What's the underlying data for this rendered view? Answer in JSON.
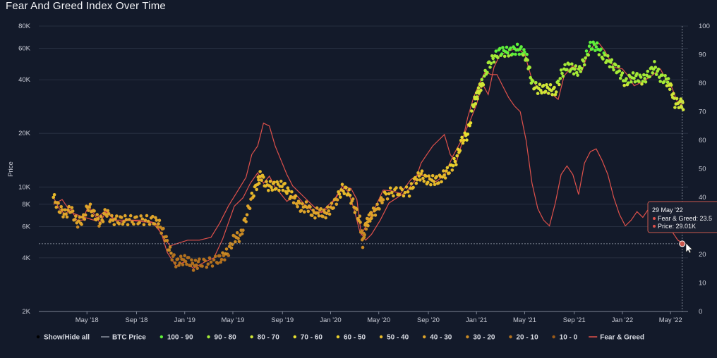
{
  "page_title": "Fear And Greed Index Over Time",
  "chart_data": {
    "type": "line",
    "title": "Fear And Greed Index Over Time",
    "ylabel": "Price",
    "y_left": {
      "scale": "log",
      "range": [
        2000,
        80000
      ],
      "ticks": [
        {
          "v": 2000,
          "label": "2K"
        },
        {
          "v": 4000,
          "label": "4K"
        },
        {
          "v": 6000,
          "label": "6K"
        },
        {
          "v": 8000,
          "label": "8K"
        },
        {
          "v": 10000,
          "label": "10K"
        },
        {
          "v": 20000,
          "label": "20K"
        },
        {
          "v": 40000,
          "label": "40K"
        },
        {
          "v": 60000,
          "label": "60K"
        },
        {
          "v": 80000,
          "label": "80K"
        }
      ]
    },
    "y_right": {
      "scale": "linear",
      "range": [
        0,
        100
      ],
      "ticks": [
        0,
        10,
        20,
        30,
        40,
        50,
        60,
        70,
        80,
        90,
        100
      ]
    },
    "x_ticks": [
      {
        "t": 2018.33,
        "label": "May '18"
      },
      {
        "t": 2018.67,
        "label": "Sep '18"
      },
      {
        "t": 2019.0,
        "label": "Jan '19"
      },
      {
        "t": 2019.33,
        "label": "May '19"
      },
      {
        "t": 2019.67,
        "label": "Sep '19"
      },
      {
        "t": 2020.0,
        "label": "Jan '20"
      },
      {
        "t": 2020.33,
        "label": "May '20"
      },
      {
        "t": 2020.67,
        "label": "Sep '20"
      },
      {
        "t": 2021.0,
        "label": "Jan '21"
      },
      {
        "t": 2021.33,
        "label": "May '21"
      },
      {
        "t": 2021.67,
        "label": "Sep '21"
      },
      {
        "t": 2022.0,
        "label": "Jan '22"
      },
      {
        "t": 2022.33,
        "label": "May '22"
      }
    ],
    "x_range": [
      2018.0,
      2022.45
    ],
    "btc_price": [
      [
        2018.1,
        8000
      ],
      [
        2018.16,
        8500
      ],
      [
        2018.22,
        7200
      ],
      [
        2018.3,
        6800
      ],
      [
        2018.38,
        6500
      ],
      [
        2018.46,
        7400
      ],
      [
        2018.54,
        6300
      ],
      [
        2018.62,
        6500
      ],
      [
        2018.7,
        6400
      ],
      [
        2018.78,
        6300
      ],
      [
        2018.84,
        5500
      ],
      [
        2018.88,
        4300
      ],
      [
        2018.94,
        3600
      ],
      [
        2019.0,
        3800
      ],
      [
        2019.06,
        3500
      ],
      [
        2019.14,
        3800
      ],
      [
        2019.2,
        4000
      ],
      [
        2019.26,
        5100
      ],
      [
        2019.34,
        7800
      ],
      [
        2019.4,
        8700
      ],
      [
        2019.45,
        10500
      ],
      [
        2019.5,
        12000
      ],
      [
        2019.54,
        10500
      ],
      [
        2019.58,
        11500
      ],
      [
        2019.62,
        10000
      ],
      [
        2019.7,
        8300
      ],
      [
        2019.76,
        9100
      ],
      [
        2019.82,
        8000
      ],
      [
        2019.88,
        7300
      ],
      [
        2019.94,
        7200
      ],
      [
        2020.0,
        7800
      ],
      [
        2020.05,
        9200
      ],
      [
        2020.1,
        10000
      ],
      [
        2020.14,
        9800
      ],
      [
        2020.18,
        8500
      ],
      [
        2020.21,
        5400
      ],
      [
        2020.24,
        6000
      ],
      [
        2020.3,
        7500
      ],
      [
        2020.36,
        9600
      ],
      [
        2020.42,
        9500
      ],
      [
        2020.48,
        9200
      ],
      [
        2020.55,
        11000
      ],
      [
        2020.6,
        11700
      ],
      [
        2020.66,
        11500
      ],
      [
        2020.72,
        10700
      ],
      [
        2020.78,
        11600
      ],
      [
        2020.84,
        15000
      ],
      [
        2020.9,
        18500
      ],
      [
        2020.96,
        24000
      ],
      [
        2021.0,
        29000
      ],
      [
        2021.04,
        38000
      ],
      [
        2021.08,
        33000
      ],
      [
        2021.12,
        47000
      ],
      [
        2021.16,
        55000
      ],
      [
        2021.22,
        58000
      ],
      [
        2021.28,
        60000
      ],
      [
        2021.33,
        56000
      ],
      [
        2021.38,
        40000
      ],
      [
        2021.42,
        36000
      ],
      [
        2021.46,
        34000
      ],
      [
        2021.52,
        33000
      ],
      [
        2021.56,
        31000
      ],
      [
        2021.6,
        42000
      ],
      [
        2021.66,
        48000
      ],
      [
        2021.72,
        44000
      ],
      [
        2021.76,
        55000
      ],
      [
        2021.8,
        62000
      ],
      [
        2021.84,
        64000
      ],
      [
        2021.88,
        58000
      ],
      [
        2021.94,
        47000
      ],
      [
        2022.0,
        46000
      ],
      [
        2022.04,
        42000
      ],
      [
        2022.08,
        37000
      ],
      [
        2022.14,
        39000
      ],
      [
        2022.2,
        42000
      ],
      [
        2022.26,
        46000
      ],
      [
        2022.3,
        40000
      ],
      [
        2022.34,
        36000
      ],
      [
        2022.38,
        29500
      ],
      [
        2022.41,
        29010
      ]
    ],
    "fear_greed_dots": [
      [
        2018.1,
        40
      ],
      [
        2018.14,
        36
      ],
      [
        2018.18,
        34
      ],
      [
        2018.22,
        36
      ],
      [
        2018.26,
        31
      ],
      [
        2018.3,
        32
      ],
      [
        2018.34,
        37
      ],
      [
        2018.38,
        34
      ],
      [
        2018.42,
        31
      ],
      [
        2018.46,
        35
      ],
      [
        2018.5,
        32
      ],
      [
        2018.55,
        32
      ],
      [
        2018.6,
        32
      ],
      [
        2018.66,
        32
      ],
      [
        2018.72,
        32
      ],
      [
        2018.78,
        32
      ],
      [
        2018.82,
        31
      ],
      [
        2018.86,
        27
      ],
      [
        2018.9,
        21
      ],
      [
        2018.94,
        17
      ],
      [
        2018.98,
        18
      ],
      [
        2019.02,
        18
      ],
      [
        2019.06,
        16
      ],
      [
        2019.1,
        17
      ],
      [
        2019.16,
        17
      ],
      [
        2019.22,
        18
      ],
      [
        2019.26,
        19
      ],
      [
        2019.3,
        21
      ],
      [
        2019.34,
        26
      ],
      [
        2019.38,
        26
      ],
      [
        2019.42,
        33
      ],
      [
        2019.46,
        40
      ],
      [
        2019.5,
        45
      ],
      [
        2019.52,
        48
      ],
      [
        2019.56,
        44
      ],
      [
        2019.6,
        44
      ],
      [
        2019.64,
        44
      ],
      [
        2019.68,
        44
      ],
      [
        2019.72,
        41
      ],
      [
        2019.76,
        39
      ],
      [
        2019.8,
        36
      ],
      [
        2019.84,
        37
      ],
      [
        2019.88,
        34
      ],
      [
        2019.92,
        35
      ],
      [
        2019.96,
        34
      ],
      [
        2020.0,
        36
      ],
      [
        2020.04,
        39
      ],
      [
        2020.08,
        43
      ],
      [
        2020.12,
        42
      ],
      [
        2020.16,
        37
      ],
      [
        2020.2,
        32
      ],
      [
        2020.22,
        24
      ],
      [
        2020.24,
        30
      ],
      [
        2020.26,
        32
      ],
      [
        2020.28,
        34
      ],
      [
        2020.32,
        36
      ],
      [
        2020.36,
        40
      ],
      [
        2020.42,
        42
      ],
      [
        2020.48,
        42
      ],
      [
        2020.54,
        42
      ],
      [
        2020.58,
        46
      ],
      [
        2020.62,
        48
      ],
      [
        2020.66,
        46
      ],
      [
        2020.7,
        46
      ],
      [
        2020.74,
        46
      ],
      [
        2020.78,
        48
      ],
      [
        2020.82,
        50
      ],
      [
        2020.86,
        53
      ],
      [
        2020.9,
        60
      ],
      [
        2020.94,
        62
      ],
      [
        2020.98,
        73
      ],
      [
        2021.0,
        75
      ],
      [
        2021.02,
        78
      ],
      [
        2021.04,
        80
      ],
      [
        2021.08,
        86
      ],
      [
        2021.12,
        89
      ],
      [
        2021.16,
        91
      ],
      [
        2021.2,
        91
      ],
      [
        2021.24,
        91
      ],
      [
        2021.28,
        92
      ],
      [
        2021.32,
        91
      ],
      [
        2021.35,
        88
      ],
      [
        2021.38,
        80
      ],
      [
        2021.42,
        78
      ],
      [
        2021.46,
        78
      ],
      [
        2021.5,
        78
      ],
      [
        2021.54,
        77
      ],
      [
        2021.58,
        83
      ],
      [
        2021.62,
        86
      ],
      [
        2021.66,
        85
      ],
      [
        2021.7,
        84
      ],
      [
        2021.74,
        88
      ],
      [
        2021.78,
        93
      ],
      [
        2021.82,
        93
      ],
      [
        2021.86,
        90
      ],
      [
        2021.9,
        88
      ],
      [
        2021.94,
        86
      ],
      [
        2021.98,
        84
      ],
      [
        2022.02,
        80
      ],
      [
        2022.06,
        82
      ],
      [
        2022.1,
        82
      ],
      [
        2022.14,
        81
      ],
      [
        2022.18,
        83
      ],
      [
        2022.22,
        86
      ],
      [
        2022.26,
        82
      ],
      [
        2022.3,
        81
      ],
      [
        2022.33,
        79
      ],
      [
        2022.36,
        73
      ],
      [
        2022.4,
        73
      ],
      [
        2022.42,
        72
      ]
    ],
    "fear_greed_line": [
      [
        2018.1,
        40
      ],
      [
        2018.14,
        36
      ],
      [
        2018.18,
        34
      ],
      [
        2018.22,
        36
      ],
      [
        2018.26,
        32
      ],
      [
        2018.3,
        32
      ],
      [
        2018.34,
        37
      ],
      [
        2018.38,
        34
      ],
      [
        2018.42,
        31
      ],
      [
        2018.46,
        35
      ],
      [
        2018.52,
        32
      ],
      [
        2018.62,
        32
      ],
      [
        2018.72,
        32
      ],
      [
        2018.8,
        31
      ],
      [
        2018.84,
        27
      ],
      [
        2018.9,
        23
      ],
      [
        2018.96,
        24
      ],
      [
        2019.02,
        25
      ],
      [
        2019.1,
        25
      ],
      [
        2019.18,
        26
      ],
      [
        2019.24,
        31
      ],
      [
        2019.3,
        37
      ],
      [
        2019.36,
        42
      ],
      [
        2019.42,
        47
      ],
      [
        2019.46,
        55
      ],
      [
        2019.5,
        58
      ],
      [
        2019.54,
        66
      ],
      [
        2019.58,
        65
      ],
      [
        2019.62,
        58
      ],
      [
        2019.66,
        53
      ],
      [
        2019.7,
        48
      ],
      [
        2019.74,
        44
      ],
      [
        2019.78,
        42
      ],
      [
        2019.82,
        40
      ],
      [
        2019.86,
        38
      ],
      [
        2019.9,
        36
      ],
      [
        2019.94,
        35
      ],
      [
        2019.98,
        37
      ],
      [
        2020.04,
        40
      ],
      [
        2020.08,
        44
      ],
      [
        2020.12,
        42
      ],
      [
        2020.16,
        36
      ],
      [
        2020.2,
        28
      ],
      [
        2020.24,
        25
      ],
      [
        2020.28,
        27
      ],
      [
        2020.34,
        32
      ],
      [
        2020.4,
        38
      ],
      [
        2020.46,
        40
      ],
      [
        2020.52,
        42
      ],
      [
        2020.58,
        46
      ],
      [
        2020.62,
        52
      ],
      [
        2020.66,
        55
      ],
      [
        2020.7,
        58
      ],
      [
        2020.74,
        60
      ],
      [
        2020.78,
        62
      ],
      [
        2020.82,
        55
      ],
      [
        2020.86,
        52
      ],
      [
        2020.9,
        59
      ],
      [
        2020.94,
        68
      ],
      [
        2020.98,
        75
      ],
      [
        2021.02,
        80
      ],
      [
        2021.06,
        84
      ],
      [
        2021.1,
        83
      ],
      [
        2021.14,
        83
      ],
      [
        2021.18,
        79
      ],
      [
        2021.22,
        75
      ],
      [
        2021.26,
        72
      ],
      [
        2021.3,
        70
      ],
      [
        2021.34,
        60
      ],
      [
        2021.38,
        45
      ],
      [
        2021.42,
        36
      ],
      [
        2021.46,
        32
      ],
      [
        2021.5,
        30
      ],
      [
        2021.54,
        38
      ],
      [
        2021.58,
        48
      ],
      [
        2021.62,
        51
      ],
      [
        2021.66,
        48
      ],
      [
        2021.7,
        41
      ],
      [
        2021.74,
        52
      ],
      [
        2021.78,
        56
      ],
      [
        2021.82,
        57
      ],
      [
        2021.86,
        53
      ],
      [
        2021.9,
        48
      ],
      [
        2021.94,
        40
      ],
      [
        2021.98,
        34
      ],
      [
        2022.02,
        30
      ],
      [
        2022.06,
        32
      ],
      [
        2022.1,
        35
      ],
      [
        2022.14,
        33
      ],
      [
        2022.18,
        36
      ],
      [
        2022.22,
        35
      ],
      [
        2022.26,
        33
      ],
      [
        2022.3,
        30
      ],
      [
        2022.34,
        28
      ],
      [
        2022.38,
        25
      ],
      [
        2022.41,
        24
      ]
    ],
    "crosshair_price": 4800,
    "tooltip": {
      "date": "29 May '22",
      "fg_text": "Fear & Greed: 23.5",
      "price_text": "Price: 29.01K",
      "fg_value": 23.5,
      "price_value": 29010
    },
    "legend": [
      {
        "label": "Show/Hide all",
        "kind": "dot",
        "color": "#000000"
      },
      {
        "label": "BTC Price",
        "kind": "line",
        "color": "#8a8f9c"
      },
      {
        "label": "100 - 90",
        "kind": "dot",
        "color": "#5ef03a"
      },
      {
        "label": "90 - 80",
        "kind": "dot",
        "color": "#a4ea36"
      },
      {
        "label": "80 - 70",
        "kind": "dot",
        "color": "#d0e636"
      },
      {
        "label": "70 - 60",
        "kind": "dot",
        "color": "#e8e030"
      },
      {
        "label": "60 - 50",
        "kind": "dot",
        "color": "#e9cf2c"
      },
      {
        "label": "50 - 40",
        "kind": "dot",
        "color": "#e6b92a"
      },
      {
        "label": "40 - 30",
        "kind": "dot",
        "color": "#dea42a"
      },
      {
        "label": "30 - 20",
        "kind": "dot",
        "color": "#c98a24"
      },
      {
        "label": "20 - 10",
        "kind": "dot",
        "color": "#b3711e"
      },
      {
        "label": "10 - 0",
        "kind": "dot",
        "color": "#9a5a18"
      },
      {
        "label": "Fear & Greed",
        "kind": "line",
        "color": "#e0514b"
      }
    ],
    "colors": {
      "background": "#131a2a",
      "grid": "#2c3446",
      "btc_line": "#e0514b",
      "crosshair": "#9aa0ad"
    }
  }
}
